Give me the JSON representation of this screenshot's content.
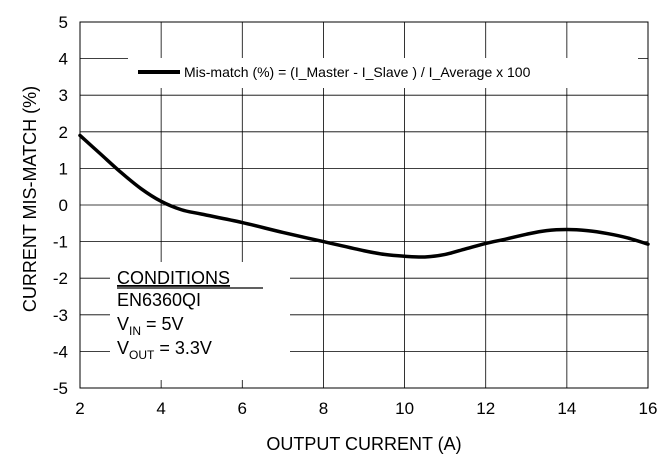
{
  "chart_data": {
    "type": "line",
    "title": "",
    "xlabel": "OUTPUT CURRENT (A)",
    "ylabel": "CURRENT MIS-MATCH (%)",
    "xlim": [
      2,
      16
    ],
    "ylim": [
      -5,
      5
    ],
    "xticks": [
      2,
      4,
      6,
      8,
      10,
      12,
      14,
      16
    ],
    "yticks": [
      -5,
      -4,
      -3,
      -2,
      -1,
      0,
      1,
      2,
      3,
      4,
      5
    ],
    "grid": true,
    "legend_position": "top-right",
    "series": [
      {
        "name": "Mis-match (%) = (I_Master - I_Slave ) / I_Average x 100",
        "color": "#000000",
        "x": [
          2.0,
          2.5,
          3.0,
          3.5,
          4.0,
          4.5,
          5.0,
          6.0,
          7.0,
          8.0,
          9.0,
          9.5,
          10.0,
          10.5,
          11.0,
          11.5,
          12.0,
          12.5,
          13.0,
          13.5,
          14.0,
          14.5,
          15.0,
          15.5,
          16.0
        ],
        "y": [
          1.9,
          1.4,
          0.9,
          0.45,
          0.1,
          -0.13,
          -0.25,
          -0.48,
          -0.75,
          -1.0,
          -1.25,
          -1.35,
          -1.4,
          -1.42,
          -1.35,
          -1.2,
          -1.05,
          -0.93,
          -0.8,
          -0.7,
          -0.67,
          -0.7,
          -0.78,
          -0.9,
          -1.07
        ]
      }
    ],
    "annotation": {
      "heading": "CONDITIONS",
      "lines": [
        {
          "main": "EN6360QI",
          "sub": "",
          "tail": ""
        },
        {
          "main": "V",
          "sub": "IN",
          "tail": " = 5V"
        },
        {
          "main": "V",
          "sub": "OUT",
          "tail": " = 3.3V"
        }
      ]
    }
  }
}
